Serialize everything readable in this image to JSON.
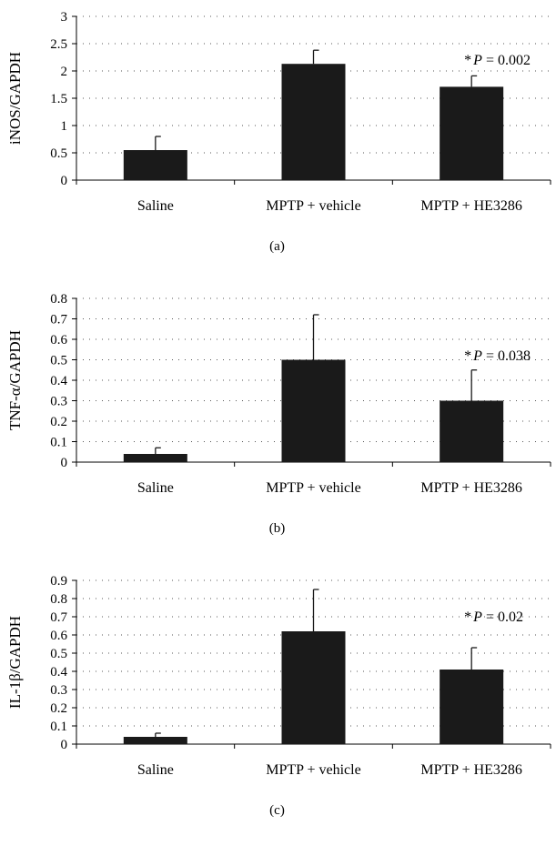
{
  "colors": {
    "bar": "#1a1a1a",
    "axis": "#000000",
    "grid": "#555555",
    "background": "#ffffff"
  },
  "chart_data": [
    {
      "type": "bar",
      "panel_label": "(a)",
      "ylabel": "iNOS/GAPDH",
      "xlabel": "",
      "categories": [
        "Saline",
        "MPTP + vehicle",
        "MPTP + HE3286"
      ],
      "values": [
        0.55,
        2.13,
        1.71
      ],
      "error_upper": [
        0.8,
        2.38,
        1.91
      ],
      "ylim": [
        0,
        3
      ],
      "yticks": [
        0,
        0.5,
        1,
        1.5,
        2,
        2.5,
        3
      ],
      "ytick_labels": [
        "0",
        "0.5",
        "1",
        "1.5",
        "2",
        "2.5",
        "3"
      ],
      "grid": "horizontal dotted",
      "annotation": {
        "prefix": "*",
        "var": "P",
        "text": " = 0.002",
        "category_index": 2,
        "y": 2.2
      }
    },
    {
      "type": "bar",
      "panel_label": "(b)",
      "ylabel": "TNF-α/GAPDH",
      "xlabel": "",
      "categories": [
        "Saline",
        "MPTP + vehicle",
        "MPTP + HE3286"
      ],
      "values": [
        0.04,
        0.5,
        0.3
      ],
      "error_upper": [
        0.07,
        0.72,
        0.45
      ],
      "ylim": [
        0,
        0.8
      ],
      "yticks": [
        0,
        0.1,
        0.2,
        0.3,
        0.4,
        0.5,
        0.6,
        0.7,
        0.8
      ],
      "ytick_labels": [
        "0",
        "0.1",
        "0.2",
        "0.3",
        "0.4",
        "0.5",
        "0.6",
        "0.7",
        "0.8"
      ],
      "grid": "horizontal dotted",
      "annotation": {
        "prefix": "*",
        "var": "P",
        "text": " = 0.038",
        "category_index": 2,
        "y": 0.52
      }
    },
    {
      "type": "bar",
      "panel_label": "(c)",
      "ylabel": "IL-1β/GAPDH",
      "xlabel": "",
      "categories": [
        "Saline",
        "MPTP + vehicle",
        "MPTP + HE3286"
      ],
      "values": [
        0.04,
        0.62,
        0.41
      ],
      "error_upper": [
        0.06,
        0.85,
        0.53
      ],
      "ylim": [
        0,
        0.9
      ],
      "yticks": [
        0,
        0.1,
        0.2,
        0.3,
        0.4,
        0.5,
        0.6,
        0.7,
        0.8,
        0.9
      ],
      "ytick_labels": [
        "0",
        "0.1",
        "0.2",
        "0.3",
        "0.4",
        "0.5",
        "0.6",
        "0.7",
        "0.8",
        "0.9"
      ],
      "grid": "horizontal dotted",
      "annotation": {
        "prefix": "*",
        "var": "P",
        "text": " = 0.02",
        "category_index": 2,
        "y": 0.7
      }
    }
  ]
}
